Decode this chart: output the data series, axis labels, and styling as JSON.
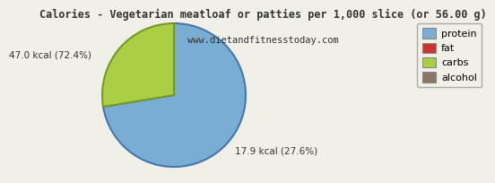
{
  "title": "Calories - Vegetarian meatloaf or patties per 1,000 slice (or 56.00 g)",
  "subtitle": "www.dietandfitnesstoday.com",
  "slices": [
    72.4,
    27.6
  ],
  "slice_colors": [
    "#7aadd4",
    "#aacf44"
  ],
  "slice_edge_colors": [
    "#4477aa",
    "#779922"
  ],
  "legend_labels": [
    "protein",
    "fat",
    "carbs",
    "alcohol"
  ],
  "legend_colors": [
    "#7aadd4",
    "#cc3333",
    "#aacf44",
    "#887766"
  ],
  "label_protein": "47.0 kcal (72.4%)",
  "label_carbs": "17.9 kcal (27.6%)",
  "title_fontsize": 8.5,
  "subtitle_fontsize": 7.5,
  "label_fontsize": 7.5,
  "legend_fontsize": 8.0,
  "background_color": "#f0f0e8",
  "text_color": "#333333"
}
